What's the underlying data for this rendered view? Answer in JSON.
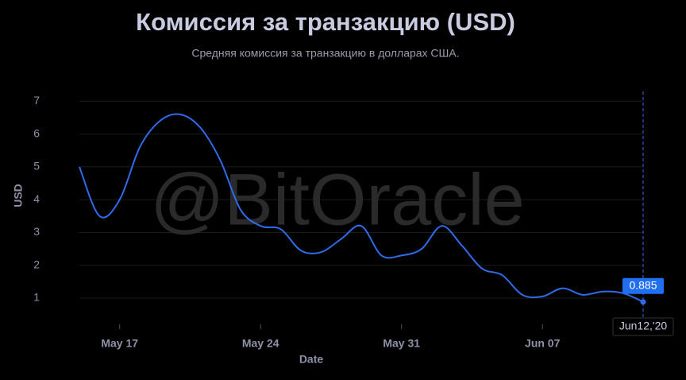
{
  "chart_data": {
    "type": "line",
    "title": "Комиссия за транзакцию (USD)",
    "subtitle": "Средняя комиссия за транзакцию в долларах США.",
    "watermark": "@BitOracle",
    "x_label": "Date",
    "y_label": "USD",
    "categories": [
      null,
      null,
      "May 17",
      null,
      null,
      null,
      null,
      null,
      null,
      "May 24",
      null,
      null,
      null,
      null,
      null,
      null,
      "May 31",
      null,
      null,
      null,
      null,
      null,
      null,
      "Jun 07",
      null,
      null,
      null,
      null,
      "Jun12,'20"
    ],
    "series": [
      {
        "name": "USD",
        "color": "#2f6bea",
        "values": [
          5.0,
          3.5,
          4.0,
          5.6,
          6.4,
          6.6,
          6.2,
          5.2,
          3.7,
          3.2,
          3.1,
          2.45,
          2.4,
          2.8,
          3.2,
          2.3,
          2.3,
          2.5,
          3.2,
          2.6,
          1.9,
          1.7,
          1.1,
          1.05,
          1.3,
          1.1,
          1.2,
          1.15,
          0.885
        ]
      }
    ],
    "ylim": [
      0.2,
      7.3
    ],
    "yticks": [
      1,
      2,
      3,
      4,
      5,
      6,
      7
    ],
    "grid": true
  }
}
